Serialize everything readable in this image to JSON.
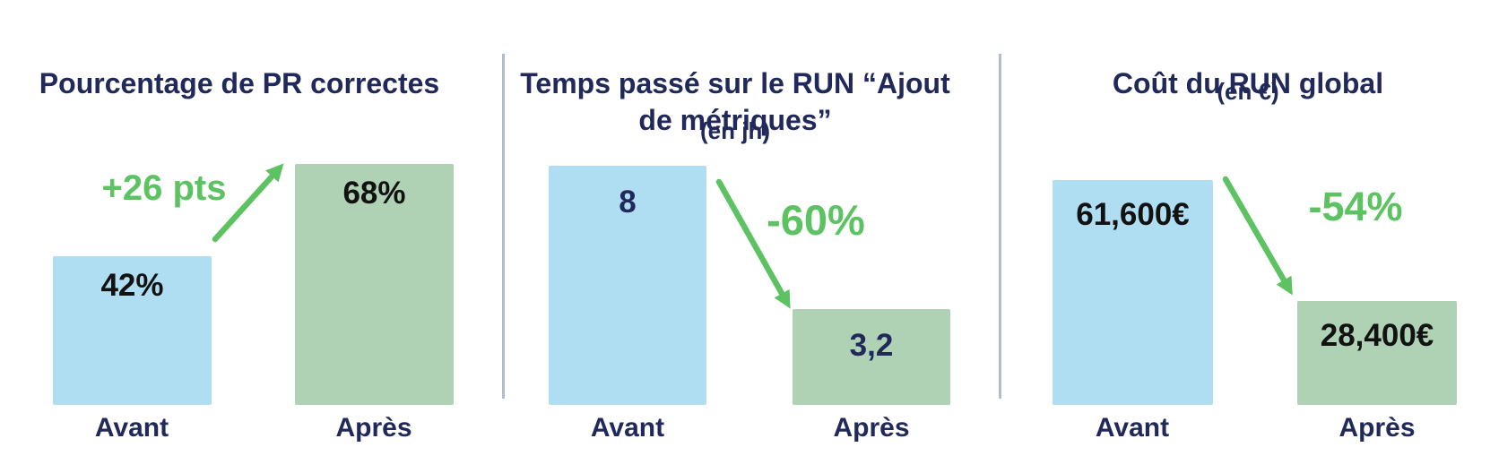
{
  "colors": {
    "navy": "#20295A",
    "trend_green": "#5CC262",
    "bar_blue": "#AFDEF3",
    "bar_green": "#AFD2B5",
    "value_dark": "#121212",
    "divider": "#B3BCCA"
  },
  "chart_data": [
    {
      "type": "bar",
      "title": "Pourcentage de PR correctes",
      "categories": [
        "Avant",
        "Après"
      ],
      "values": [
        42,
        68
      ],
      "value_labels": [
        "42%",
        "68%"
      ],
      "annotation": "+26 pts",
      "trend": "up",
      "grid": false,
      "legend": false
    },
    {
      "type": "bar",
      "title": "Temps passé sur le RUN “Ajout de métriques”",
      "title_lines": [
        "Temps passé sur le RUN “Ajout",
        "de métriques”"
      ],
      "subtitle": "(en jh)",
      "categories": [
        "Avant",
        "Après"
      ],
      "values": [
        8,
        3.2
      ],
      "value_labels": [
        "8",
        "3,2"
      ],
      "annotation": "-60%",
      "trend": "down",
      "grid": false,
      "legend": false
    },
    {
      "type": "bar",
      "title": "Coût du RUN global",
      "subtitle": "(en €)",
      "categories": [
        "Avant",
        "Après"
      ],
      "values": [
        61600,
        28400
      ],
      "value_labels": [
        "61,600€",
        "28,400€"
      ],
      "annotation": "-54%",
      "trend": "down",
      "grid": false,
      "legend": false
    }
  ]
}
